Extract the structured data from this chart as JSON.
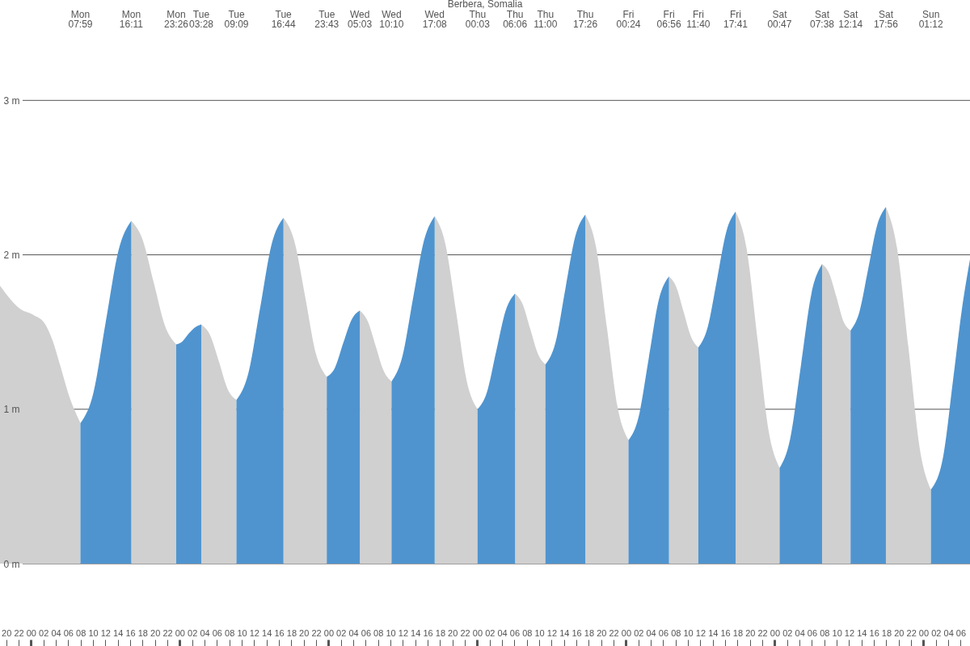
{
  "chart_data": {
    "type": "area",
    "title": "Berbera, Somalia",
    "series": [
      {
        "color": "#d0d0d0",
        "x": [
          19.0,
          22.25,
          24.45,
          26.14,
          27.44,
          28.74,
          30.04,
          31.98,
          36.08,
          40.18,
          41.99,
          43.81,
          45.62,
          47.43,
          49.45,
          51.47,
          52.89,
          54.31,
          55.73,
          57.15,
          60.94,
          64.73,
          66.48,
          68.23,
          69.97,
          71.72,
          74.39,
          77.05,
          78.33,
          79.61,
          80.89,
          82.17,
          85.65,
          89.13,
          90.86,
          92.59,
          94.32,
          96.05,
          99.08,
          102.1,
          103.33,
          104.55,
          105.78,
          107.0,
          110.22,
          113.43,
          115.17,
          116.92,
          118.66,
          120.4,
          123.67,
          126.93,
          128.12,
          129.3,
          130.49,
          131.67,
          134.68,
          137.68,
          139.46,
          141.23,
          143.01,
          144.78,
          148.21,
          151.63,
          152.78,
          153.93,
          155.08,
          156.23,
          159.08,
          161.93,
          163.75,
          165.57,
          167.38,
          169.2
        ],
        "values": [
          1.8,
          1.65,
          1.61,
          1.56,
          1.45,
          1.28,
          1.1,
          0.91,
          null,
          2.22,
          2.1,
          1.82,
          1.54,
          1.42,
          null,
          1.55,
          1.48,
          1.31,
          1.13,
          1.06,
          null,
          2.24,
          2.09,
          1.73,
          1.36,
          1.21,
          null,
          1.64,
          1.57,
          1.41,
          1.25,
          1.18,
          null,
          2.25,
          2.07,
          1.63,
          1.18,
          1.0,
          null,
          1.75,
          1.68,
          1.52,
          1.36,
          1.29,
          null,
          2.26,
          2.05,
          1.53,
          1.01,
          0.8,
          null,
          1.86,
          1.79,
          1.63,
          1.47,
          1.4,
          null,
          2.28,
          2.04,
          1.45,
          0.86,
          0.62,
          null,
          1.94,
          1.88,
          1.73,
          1.57,
          1.51,
          null,
          2.31,
          2.04,
          1.4,
          0.75,
          0.48
        ]
      },
      {
        "color": "#4f94cf",
        "x": [
          31.98,
          34.03,
          36.08,
          38.13,
          40.18,
          43.81,
          47.43,
          48.44,
          49.45,
          50.46,
          51.47,
          54.31,
          57.15,
          59.05,
          60.94,
          62.83,
          64.73,
          68.23,
          71.72,
          73.05,
          74.39,
          75.72,
          77.05,
          79.61,
          82.17,
          83.91,
          85.65,
          87.39,
          89.13,
          92.59,
          96.05,
          97.56,
          99.08,
          100.59,
          102.1,
          104.55,
          107.0,
          108.61,
          110.22,
          111.82,
          113.43,
          116.92,
          120.4,
          122.03,
          123.67,
          125.3,
          126.93,
          129.3,
          131.67,
          133.17,
          134.68,
          136.18,
          137.68,
          141.23,
          144.78,
          146.49,
          148.21,
          149.92,
          151.63,
          153.93,
          156.23,
          157.66,
          159.08,
          160.51,
          161.93,
          165.57,
          169.2,
          171.2,
          172.8,
          174.2,
          175.5
        ],
        "values": [
          0.91,
          1.1,
          1.57,
          2.03,
          2.22,
          null,
          1.42,
          1.44,
          1.49,
          1.53,
          1.55,
          null,
          1.06,
          1.23,
          1.65,
          2.07,
          2.24,
          null,
          1.21,
          1.27,
          1.43,
          1.58,
          1.64,
          null,
          1.18,
          1.34,
          1.72,
          2.09,
          2.25,
          null,
          1.0,
          1.11,
          1.38,
          1.64,
          1.75,
          null,
          1.29,
          1.43,
          1.78,
          2.12,
          2.26,
          null,
          0.8,
          0.95,
          1.33,
          1.71,
          1.86,
          null,
          1.4,
          1.53,
          1.84,
          2.15,
          2.28,
          null,
          0.62,
          0.81,
          1.28,
          1.75,
          1.94,
          null,
          1.51,
          1.63,
          1.91,
          2.19,
          2.31,
          null,
          0.48,
          0.7,
          1.2,
          1.65,
          1.97
        ]
      }
    ],
    "xlim": [
      19.0,
      175.5
    ],
    "xticks": [
      20,
      22,
      {
        "value": 24,
        "label": "00"
      },
      {
        "value": 26,
        "label": "02"
      },
      {
        "value": 28,
        "label": "04"
      },
      {
        "value": 30,
        "label": "06"
      },
      {
        "value": 32,
        "label": "08"
      },
      {
        "value": 34,
        "label": "10"
      },
      {
        "value": 36,
        "label": "12"
      },
      {
        "value": 38,
        "label": "14"
      },
      {
        "value": 40,
        "label": "16"
      },
      {
        "value": 42,
        "label": "18"
      },
      {
        "value": 44,
        "label": "20"
      },
      {
        "value": 46,
        "label": "22"
      },
      {
        "value": 48,
        "label": "00"
      },
      {
        "value": 50,
        "label": "02"
      },
      {
        "value": 52,
        "label": "04"
      },
      {
        "value": 54,
        "label": "06"
      },
      {
        "value": 56,
        "label": "08"
      },
      {
        "value": 58,
        "label": "10"
      },
      {
        "value": 60,
        "label": "12"
      },
      {
        "value": 62,
        "label": "14"
      },
      {
        "value": 64,
        "label": "16"
      },
      {
        "value": 66,
        "label": "18"
      },
      {
        "value": 68,
        "label": "20"
      },
      {
        "value": 70,
        "label": "22"
      },
      {
        "value": 72,
        "label": "00"
      },
      {
        "value": 74,
        "label": "02"
      },
      {
        "value": 76,
        "label": "04"
      },
      {
        "value": 78,
        "label": "06"
      },
      {
        "value": 80,
        "label": "08"
      },
      {
        "value": 82,
        "label": "10"
      },
      {
        "value": 84,
        "label": "12"
      },
      {
        "value": 86,
        "label": "14"
      },
      {
        "value": 88,
        "label": "16"
      },
      {
        "value": 90,
        "label": "18"
      },
      {
        "value": 92,
        "label": "20"
      },
      {
        "value": 94,
        "label": "22"
      },
      {
        "value": 96,
        "label": "00"
      },
      {
        "value": 98,
        "label": "02"
      },
      {
        "value": 100,
        "label": "04"
      },
      {
        "value": 102,
        "label": "06"
      },
      {
        "value": 104,
        "label": "08"
      },
      {
        "value": 106,
        "label": "10"
      },
      {
        "value": 108,
        "label": "12"
      },
      {
        "value": 110,
        "label": "14"
      },
      {
        "value": 112,
        "label": "16"
      },
      {
        "value": 114,
        "label": "18"
      },
      {
        "value": 116,
        "label": "20"
      },
      {
        "value": 118,
        "label": "22"
      },
      {
        "value": 120,
        "label": "00"
      },
      {
        "value": 122,
        "label": "02"
      },
      {
        "value": 124,
        "label": "04"
      },
      {
        "value": 126,
        "label": "06"
      },
      {
        "value": 128,
        "label": "08"
      },
      {
        "value": 130,
        "label": "10"
      },
      {
        "value": 132,
        "label": "12"
      },
      {
        "value": 134,
        "label": "14"
      },
      {
        "value": 136,
        "label": "16"
      },
      {
        "value": 138,
        "label": "18"
      },
      {
        "value": 140,
        "label": "20"
      },
      {
        "value": 142,
        "label": "22"
      },
      {
        "value": 144,
        "label": "00"
      },
      {
        "value": 146,
        "label": "02"
      },
      {
        "value": 148,
        "label": "04"
      },
      {
        "value": 150,
        "label": "06"
      },
      {
        "value": 152,
        "label": "08"
      },
      {
        "value": 154,
        "label": "10"
      },
      {
        "value": 156,
        "label": "12"
      },
      {
        "value": 158,
        "label": "14"
      },
      {
        "value": 160,
        "label": "16"
      },
      {
        "value": 162,
        "label": "18"
      },
      {
        "value": 164,
        "label": "20"
      },
      {
        "value": 166,
        "label": "22"
      },
      {
        "value": 168,
        "label": "00"
      },
      {
        "value": 170,
        "label": "02"
      },
      {
        "value": 172,
        "label": "04"
      },
      {
        "value": 174,
        "label": "06"
      }
    ],
    "ylim": [
      -0.533,
      3.65
    ],
    "yticks": [
      {
        "value": 0,
        "label": "0 m"
      },
      {
        "value": 1,
        "label": "1 m"
      },
      {
        "value": 2,
        "label": "2 m"
      },
      {
        "value": 3,
        "label": "3 m"
      }
    ],
    "grid": "y",
    "annotations": [
      "Mon\n07:59",
      "Mon\n16:11",
      "Mon\n23:26",
      "Tue\n03:28",
      "Tue\n09:09",
      "Tue\n16:44",
      "Tue\n23:43",
      "Wed\n05:03",
      "Wed\n10:10",
      "Wed\n17:08",
      "Thu\n00:03",
      "Thu\n06:06",
      "Thu\n11:00",
      "Thu\n17:26",
      "Fri\n00:24",
      "Fri\n06:56",
      "Fri\n11:40",
      "Fri\n17:41",
      "Sat\n00:47",
      "Sat\n07:38",
      "Sat\n12:14",
      "Sat\n17:56",
      "Sun\n01:12"
    ]
  }
}
